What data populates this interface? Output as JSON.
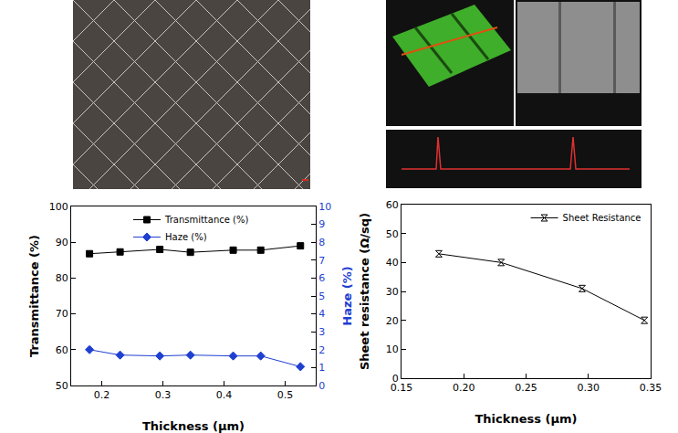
{
  "chart_data": [
    {
      "type": "line",
      "x": [
        0.18,
        0.23,
        0.295,
        0.345,
        0.415,
        0.46,
        0.525
      ],
      "xlabel": "Thickness (μm)",
      "ylabel": "Transmittance (%)",
      "y2label": "Haze (%)",
      "xlim": [
        0.15,
        0.55
      ],
      "xticks": [
        0.2,
        0.3,
        0.4,
        0.5
      ],
      "ylim": [
        50,
        100
      ],
      "yticks": [
        50,
        60,
        70,
        80,
        90,
        100
      ],
      "y2lim": [
        0,
        10
      ],
      "y2ticks": [
        0,
        1,
        2,
        3,
        4,
        5,
        6,
        7,
        8,
        9,
        10
      ],
      "grid": false,
      "legend": "top right",
      "series": [
        {
          "name": "Transmittance (%)",
          "color": "#000000",
          "marker": "square",
          "line_style": "solid",
          "values": [
            86.8,
            87.3,
            88.0,
            87.2,
            87.8,
            87.8,
            89.0
          ]
        },
        {
          "name": "Haze (%)",
          "color": "#1f3fd0",
          "marker": "diamond",
          "line_style": "solid",
          "axis": "y2",
          "values": [
            2.0,
            1.7,
            1.65,
            1.7,
            1.65,
            1.65,
            1.05
          ]
        }
      ]
    },
    {
      "type": "line",
      "x": [
        0.18,
        0.23,
        0.295,
        0.345
      ],
      "xlabel": "Thickness (μm)",
      "ylabel": "Sheet resistance (Ω/sq)",
      "xlim": [
        0.15,
        0.35
      ],
      "xticks": [
        0.15,
        {
          "value": 0.2,
          "label": "0.20"
        },
        0.25,
        {
          "value": 0.3,
          "label": "0.30"
        },
        0.35
      ],
      "ylim": [
        0,
        60
      ],
      "yticks": [
        0,
        10,
        20,
        30,
        40,
        50,
        60
      ],
      "grid": false,
      "legend": "top right",
      "series": [
        {
          "name": "Sheet Resistance",
          "color": "#000000",
          "marker": "hourglass",
          "line_style": "solid",
          "values": [
            43,
            40,
            31,
            20
          ]
        }
      ]
    }
  ]
}
